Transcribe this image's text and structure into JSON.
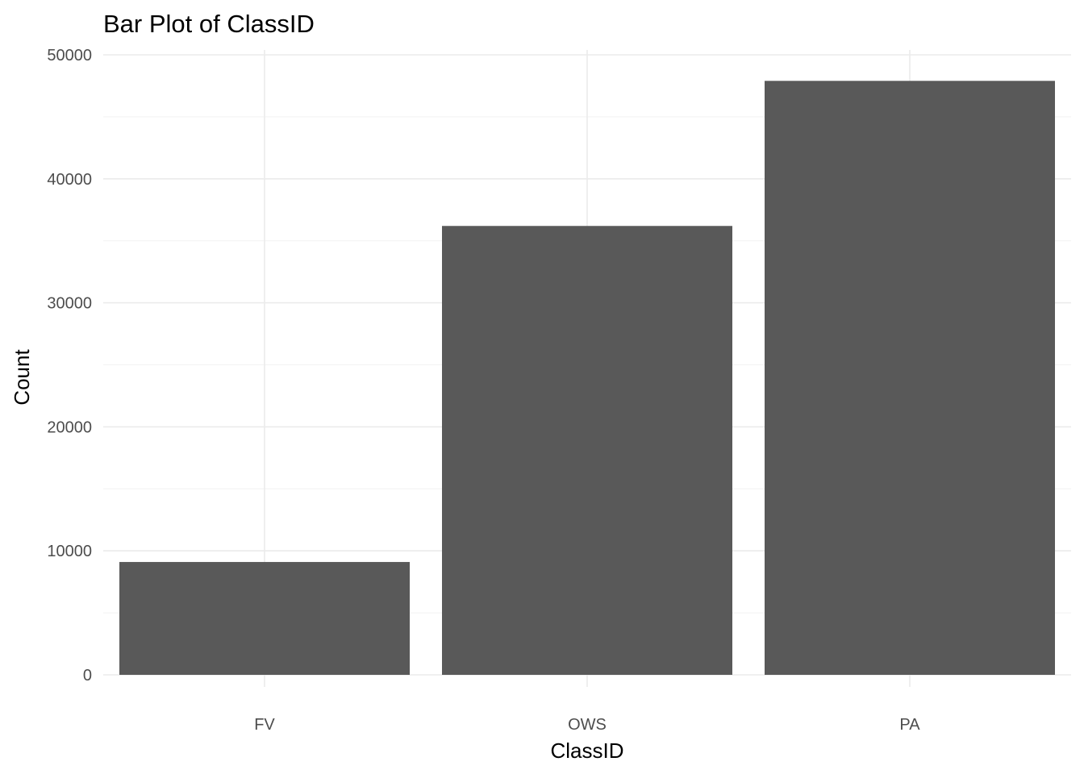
{
  "chart_data": {
    "type": "bar",
    "title": "Bar Plot of ClassID",
    "xlabel": "ClassID",
    "ylabel": "Count",
    "categories": [
      "FV",
      "OWS",
      "PA"
    ],
    "values": [
      9100,
      36200,
      47900
    ],
    "ylim": [
      0,
      50000
    ],
    "yticks": [
      0,
      10000,
      20000,
      30000,
      40000,
      50000
    ],
    "ytick_labels": [
      "0",
      "10000",
      "20000",
      "30000",
      "40000",
      "50000"
    ],
    "grid": true,
    "legend": "none",
    "bar_color": "#595959"
  }
}
